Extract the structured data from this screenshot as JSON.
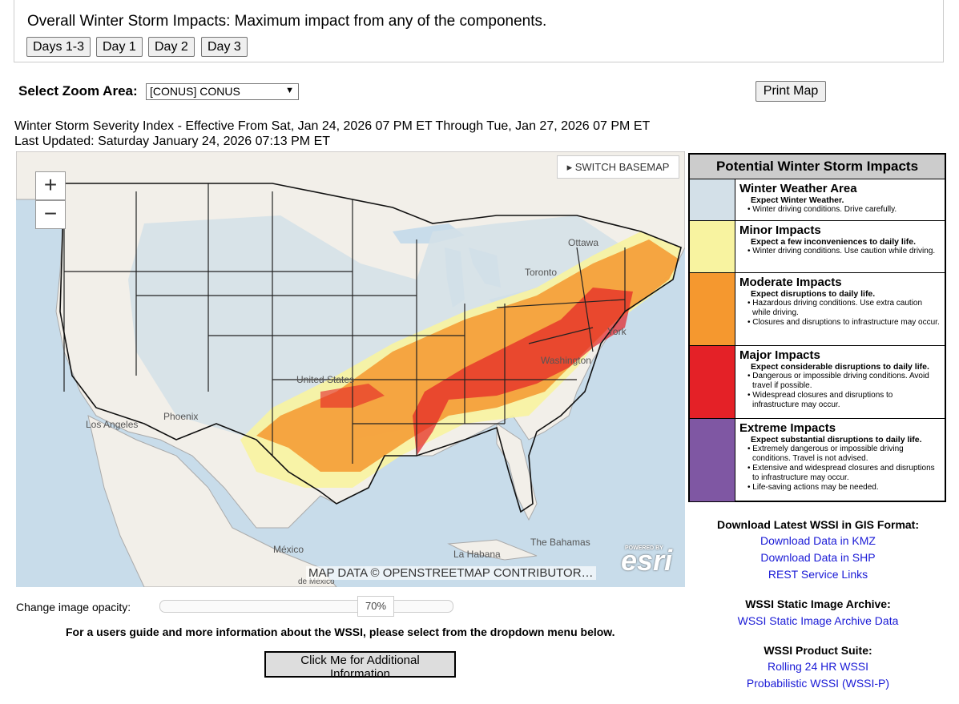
{
  "header": {
    "title": "Overall Winter Storm Impacts: Maximum impact from any of the components.",
    "day_buttons": [
      "Days 1-3",
      "Day 1",
      "Day 2",
      "Day 3"
    ]
  },
  "zoom": {
    "label": "Select Zoom Area:",
    "selected": "[CONUS] CONUS",
    "print_label": "Print Map"
  },
  "info": {
    "effective": "Winter Storm Severity Index - Effective From Sat, Jan 24, 2026 07 PM ET Through Tue, Jan 27, 2026 07 PM ET",
    "updated": "Last Updated: Saturday January 24, 2026 07:13 PM ET"
  },
  "map": {
    "zoom_in": "+",
    "zoom_out": "−",
    "basemap_btn": "▸ SWITCH BASEMAP",
    "attribution": "MAP DATA © OPENSTREETMAP CONTRIBUTOR…",
    "esri": "esri",
    "esri_powered": "POWERED BY",
    "labels": [
      "Ottawa",
      "Toronto",
      "York",
      "Washington",
      "United States",
      "Phoenix",
      "Los Angeles",
      "México",
      "La Habana",
      "The Bahamas",
      "de México"
    ]
  },
  "legend": {
    "title": "Potential Winter Storm Impacts",
    "rows": [
      {
        "name": "Winter Weather Area",
        "color": "#d3e0e8",
        "sub": "Expect Winter Weather.",
        "bullets": [
          "• Winter driving conditions. Drive carefully."
        ]
      },
      {
        "name": "Minor Impacts",
        "color": "#f8f3a0",
        "sub": "Expect a few inconveniences to daily life.",
        "bullets": [
          "• Winter driving conditions. Use caution while driving."
        ]
      },
      {
        "name": "Moderate Impacts",
        "color": "#f5982f",
        "sub": "Expect disruptions to daily life.",
        "bullets": [
          "• Hazardous driving conditions. Use extra caution while driving.",
          "• Closures and disruptions to infrastructure may occur."
        ]
      },
      {
        "name": "Major Impacts",
        "color": "#e42127",
        "sub": "Expect considerable disruptions to daily life.",
        "bullets": [
          "• Dangerous or impossible driving conditions. Avoid travel if possible.",
          "• Widespread closures and disruptions to infrastructure may occur."
        ]
      },
      {
        "name": "Extreme Impacts",
        "color": "#7f57a3",
        "sub": "Expect substantial disruptions to daily life.",
        "bullets": [
          "• Extremely dangerous or impossible driving conditions. Travel is not advised.",
          "• Extensive and widespread closures and disruptions to infrastructure may occur.",
          "• Life-saving actions may be needed."
        ]
      }
    ]
  },
  "opacity": {
    "label": "Change image opacity:",
    "value": "70%",
    "fraction": 0.7
  },
  "guide": {
    "text": "For a users guide and more information about the WSSI, please select from the dropdown menu below.",
    "button": "Click Me for Additional Information"
  },
  "downloads": {
    "heading": "Download Latest WSSI in GIS Format:",
    "links": [
      "Download Data in KMZ",
      "Download Data in SHP",
      "REST Service Links"
    ],
    "archive_heading": "WSSI Static Image Archive:",
    "archive_link": "WSSI Static Image Archive Data",
    "suite_heading": "WSSI Product Suite:",
    "suite_links": [
      "Rolling 24 HR WSSI",
      "Probabilistic WSSI (WSSI-P)"
    ]
  }
}
